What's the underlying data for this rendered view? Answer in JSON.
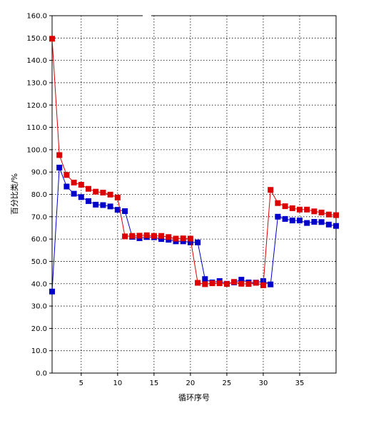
{
  "chart_data": {
    "type": "line",
    "title": "",
    "xlabel": "循环序号",
    "ylabel": "百分比类/%",
    "xlim": [
      1,
      40
    ],
    "ylim": [
      0,
      160
    ],
    "x_ticks": [
      5,
      10,
      15,
      20,
      25,
      30,
      35
    ],
    "x_tick_labels": [
      "5",
      "10",
      "15",
      "20",
      "25",
      "30",
      "35"
    ],
    "y_ticks": [
      0,
      10,
      20,
      30,
      40,
      50,
      60,
      70,
      80,
      90,
      100,
      110,
      120,
      130,
      140,
      150,
      160
    ],
    "y_tick_labels": [
      "0.0",
      "10.0",
      "20.0",
      "30.0",
      "40.0",
      "50.0",
      "60.0",
      "70.0",
      "80.0",
      "90.0",
      "100.0",
      "110.0",
      "120.0",
      "130.0",
      "140.0",
      "150.0",
      "160.0"
    ],
    "grid": true,
    "legend": "none",
    "x": [
      1,
      2,
      3,
      4,
      5,
      6,
      7,
      8,
      9,
      10,
      11,
      12,
      13,
      14,
      15,
      16,
      17,
      18,
      19,
      20,
      21,
      22,
      23,
      24,
      25,
      26,
      27,
      28,
      29,
      30,
      31,
      32,
      33,
      34,
      35,
      36,
      37,
      38,
      39,
      40
    ],
    "series": [
      {
        "color": "#0000cc",
        "values": [
          36.5,
          92.0,
          83.5,
          80.3,
          78.8,
          77.0,
          75.4,
          75.2,
          74.6,
          73.1,
          72.5,
          61.0,
          60.4,
          60.9,
          60.8,
          60.0,
          59.7,
          59.0,
          59.0,
          58.5,
          58.5,
          42.1,
          40.6,
          41.2,
          40.0,
          40.6,
          41.8,
          40.6,
          40.5,
          41.2,
          39.7,
          70.0,
          69.0,
          68.3,
          68.3,
          67.2,
          67.7,
          67.6,
          66.5,
          65.9
        ]
      },
      {
        "color": "#dd0000",
        "values": [
          149.7,
          97.6,
          88.7,
          85.3,
          84.3,
          82.5,
          81.2,
          80.8,
          79.9,
          78.6,
          61.2,
          61.4,
          61.5,
          61.7,
          61.4,
          61.4,
          60.9,
          60.2,
          60.3,
          60.2,
          40.4,
          39.8,
          40.2,
          40.2,
          39.9,
          40.8,
          40.0,
          39.9,
          40.4,
          39.3,
          82.0,
          76.1,
          74.7,
          73.8,
          73.2,
          73.2,
          72.4,
          71.9,
          71.0,
          70.7
        ]
      }
    ]
  }
}
